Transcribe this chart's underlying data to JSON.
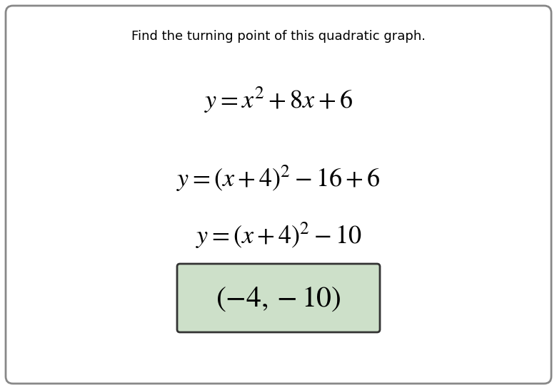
{
  "title": "Find the turning point of this quadratic graph.",
  "title_fontsize": 13,
  "line1": "$y = x^2 + 8x + 6$",
  "line2": "$y = (x + 4)^2 - 16 + 6$",
  "line3": "$y = (x + 4)^2 - 10$",
  "answer": "$(-4, -10)$",
  "math_fontsize": 26,
  "answer_fontsize": 30,
  "bg_color": "#ffffff",
  "border_color": "#888888",
  "answer_box_facecolor": "#cde0c9",
  "answer_box_edgecolor": "#333333",
  "fig_width": 7.8,
  "fig_height": 5.4
}
